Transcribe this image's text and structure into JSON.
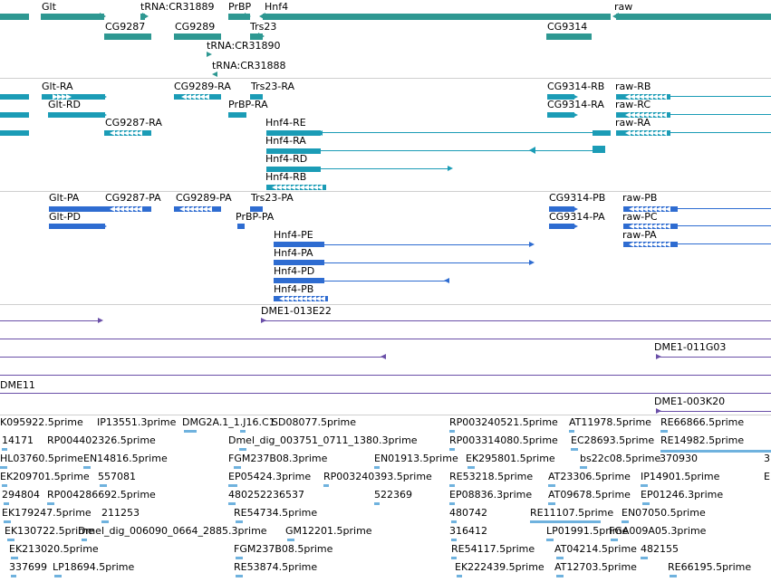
{
  "tracks": {
    "genes": {
      "labels": [
        "Glt",
        "tRNA:CR31889",
        "PrBP",
        "Hnf4",
        "raw",
        "CG9287",
        "CG9289",
        "Trs23",
        "CG9314",
        "tRNA:CR31890",
        "tRNA:CR31888"
      ]
    },
    "transcripts": {
      "labels": [
        "Glt-RA",
        "CG9289-RA",
        "Trs23-RA",
        "CG9314-RB",
        "raw-RB",
        "Glt-RD",
        "PrBP-RA",
        "CG9314-RA",
        "raw-RC",
        "CG9287-RA",
        "Hnf4-RE",
        "raw-RA",
        "Hnf4-RA",
        "Hnf4-RD",
        "Hnf4-RB"
      ]
    },
    "proteins": {
      "labels": [
        "Glt-PA",
        "CG9287-PA",
        "CG9289-PA",
        "Trs23-PA",
        "CG9314-PB",
        "raw-PB",
        "Glt-PD",
        "PrBP-PA",
        "CG9314-PA",
        "raw-PC",
        "raw-PA",
        "Hnf4-PE",
        "Hnf4-PA",
        "Hnf4-PD",
        "Hnf4-PB"
      ]
    },
    "clones": {
      "labels": [
        "DME1-013E22",
        "DME1-011G03",
        "DME11",
        "DME1-003K20"
      ]
    },
    "ests": {
      "labels": [
        "K095922.5prime",
        "IP13551.3prime",
        "DMG2A.1_1.J16.C1",
        "SD08077.5prime",
        "RP003240521.5prime",
        "AT11978.5prime",
        "RE66866.5prime",
        "14171",
        "RP004402326.5prime",
        "Dmel_dig_003751_0711_1380.3prime",
        "RP003314080.5prime",
        "EC28693.5prime",
        "RE14982.5prime",
        "HL03760.5prime",
        "EN14816.5prime",
        "FGM237B08.3prime",
        "EN01913.5prime",
        "EK295801.5prime",
        "bs22c08.5prime",
        "370930",
        "3",
        "EK209701.5prime",
        "557081",
        "EP05424.3prime",
        "RP003240393.5prime",
        "RE53218.5prime",
        "AT23306.5prime",
        "IP14901.5prime",
        "E",
        "294804",
        "RP004286692.5prime",
        "480252236537",
        "522369",
        "EP08836.3prime",
        "AT09678.5prime",
        "EP01246.3prime",
        "EK179247.5prime",
        "211253",
        "RE54734.5prime",
        "480742",
        "RE11107.5prime",
        "EN07050.5prime",
        "EK130722.5prime",
        "Dmel_dig_006090_0664_2885.3prime",
        "GM12201.5prime",
        "316412",
        "LP01991.5prime",
        "FGA009A05.3prime",
        "EK213020.5prime",
        "FGM237B08.5prime",
        "RE54117.5prime",
        "AT04214.5prime",
        "482155",
        "337699",
        "LP18694.5prime",
        "RE53874.5prime",
        "EK222439.5prime",
        "AT12703.5prime",
        "RE66195.5prime"
      ]
    }
  },
  "colors": {
    "gene": "#2e9892",
    "transcript": "#1b9cb6",
    "protein": "#2e6cd1",
    "clone": "#6a4fa8",
    "est": "#6fb2de",
    "separator": "#cfcfcf"
  }
}
